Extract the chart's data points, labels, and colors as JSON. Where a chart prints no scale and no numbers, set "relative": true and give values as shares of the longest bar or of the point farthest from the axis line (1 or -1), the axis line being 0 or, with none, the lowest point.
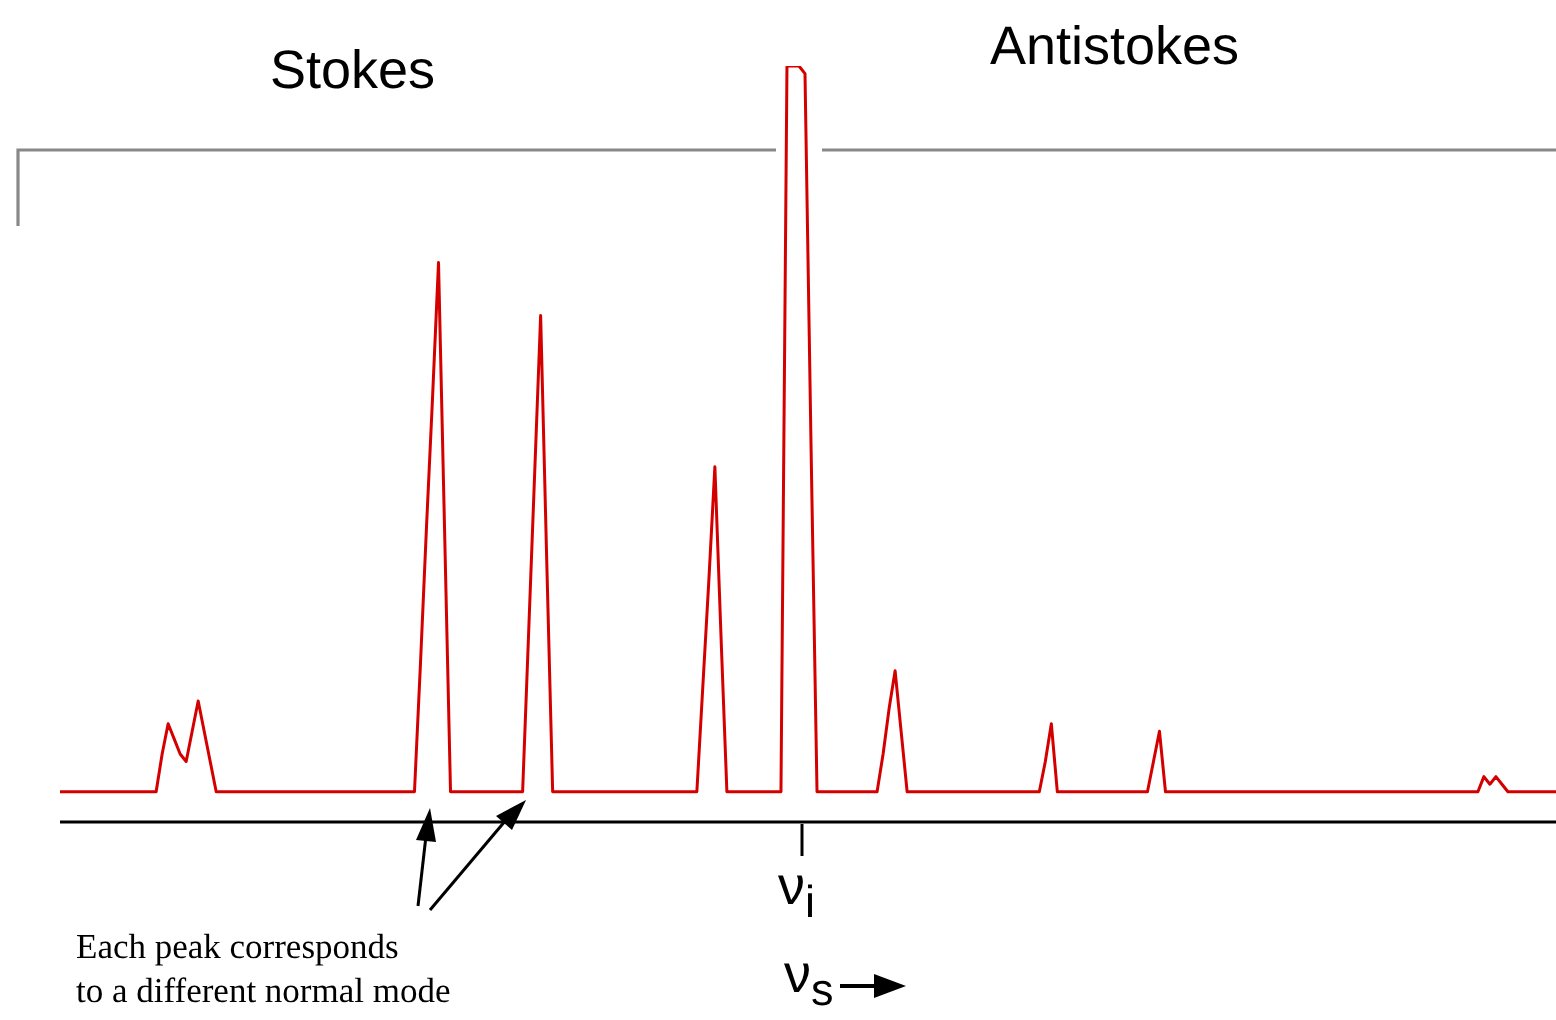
{
  "chart_data": {
    "type": "line",
    "relative": true,
    "color": "#d40000",
    "xlabel": "ν$_{s}$",
    "annotations": [
      "Stokes",
      "Antistokes",
      "ν$_{i}$",
      "Each peak corresponds\nto a different normal mode"
    ],
    "categories": [
      null,
      null,
      null,
      null,
      null,
      null,
      null,
      null,
      null,
      null,
      null,
      null,
      null,
      null,
      null,
      null,
      null,
      null,
      null,
      null,
      null,
      null,
      null,
      null,
      null,
      null,
      null,
      null,
      null,
      null,
      null,
      null,
      null,
      null,
      null,
      null,
      null,
      null,
      null,
      null,
      null,
      null,
      null,
      null,
      null,
      null,
      null,
      null,
      null,
      null,
      null,
      null,
      null,
      null,
      null,
      null,
      null,
      null,
      null,
      null,
      null,
      null,
      null,
      null,
      null,
      null,
      null,
      null,
      null,
      null,
      null,
      null,
      null,
      null,
      null,
      null,
      null,
      null,
      null,
      null,
      null,
      null,
      null,
      null,
      null,
      null,
      null,
      null,
      null,
      null,
      null,
      null,
      null,
      null,
      null,
      null,
      null,
      null,
      null,
      null,
      null,
      null,
      null,
      null,
      null,
      null,
      null,
      null,
      null,
      null,
      null,
      null,
      null,
      null,
      null,
      null,
      null,
      null,
      null,
      null,
      null,
      null,
      null,
      null,
      null,
      null,
      null,
      null,
      null,
      null,
      null,
      null,
      null,
      null,
      null,
      null,
      null,
      null,
      null,
      null,
      null,
      null,
      null,
      null,
      null,
      null,
      null,
      null,
      null,
      null,
      null,
      null,
      null,
      null,
      null,
      null,
      null,
      null,
      null,
      null,
      null,
      null,
      null,
      null,
      null,
      null,
      null,
      null,
      null,
      null,
      null,
      null,
      null,
      null,
      null,
      null,
      null,
      null,
      null,
      null,
      null,
      null,
      null,
      null,
      null,
      null,
      null,
      null,
      null,
      null,
      null,
      null,
      null,
      null,
      null,
      null,
      null,
      null,
      null,
      null,
      null,
      null,
      null,
      null,
      null,
      null,
      null,
      null,
      null,
      null,
      null,
      null,
      null,
      null,
      null,
      null,
      null,
      null,
      null,
      null,
      null,
      null,
      null,
      null,
      null,
      null,
      null,
      null,
      null,
      null,
      null,
      null,
      null,
      null,
      null,
      null,
      null,
      null,
      null,
      null,
      null,
      null,
      null,
      null,
      null,
      null,
      null,
      null,
      null,
      null
    ],
    "values": [
      0.04,
      0.04,
      0.04,
      0.04,
      0.04,
      0.04,
      0.04,
      0.04,
      0.04,
      0.04,
      0.04,
      0.04,
      0.04,
      0.04,
      0.04,
      0.04,
      0.04,
      0.09,
      0.13,
      0.11,
      0.09,
      0.08,
      0.12,
      0.16,
      0.12,
      0.08,
      0.04,
      0.04,
      0.04,
      0.04,
      0.04,
      0.04,
      0.04,
      0.04,
      0.04,
      0.04,
      0.04,
      0.04,
      0.04,
      0.04,
      0.04,
      0.04,
      0.04,
      0.04,
      0.04,
      0.04,
      0.04,
      0.04,
      0.04,
      0.04,
      0.04,
      0.04,
      0.04,
      0.04,
      0.04,
      0.04,
      0.04,
      0.04,
      0.04,
      0.04,
      0.21,
      0.39,
      0.56,
      0.74,
      0.39,
      0.04,
      0.04,
      0.04,
      0.04,
      0.04,
      0.04,
      0.04,
      0.04,
      0.04,
      0.04,
      0.04,
      0.04,
      0.04,
      0.25,
      0.46,
      0.67,
      0.35,
      0.04,
      0.04,
      0.04,
      0.04,
      0.04,
      0.04,
      0.04,
      0.04,
      0.04,
      0.04,
      0.04,
      0.04,
      0.04,
      0.04,
      0.04,
      0.04,
      0.04,
      0.04,
      0.04,
      0.04,
      0.04,
      0.04,
      0.04,
      0.04,
      0.04,
      0.18,
      0.32,
      0.47,
      0.25,
      0.04,
      0.04,
      0.04,
      0.04,
      0.04,
      0.04,
      0.04,
      0.04,
      0.04,
      0.04,
      1,
      1,
      1,
      0.99,
      0.5,
      0.04,
      0.04,
      0.04,
      0.04,
      0.04,
      0.04,
      0.04,
      0.04,
      0.04,
      0.04,
      0.04,
      0.09,
      0.15,
      0.2,
      0.12,
      0.04,
      0.04,
      0.04,
      0.04,
      0.04,
      0.04,
      0.04,
      0.04,
      0.04,
      0.04,
      0.04,
      0.04,
      0.04,
      0.04,
      0.04,
      0.04,
      0.04,
      0.04,
      0.04,
      0.04,
      0.04,
      0.04,
      0.04,
      0.08,
      0.13,
      0.04,
      0.04,
      0.04,
      0.04,
      0.04,
      0.04,
      0.04,
      0.04,
      0.04,
      0.04,
      0.04,
      0.04,
      0.04,
      0.04,
      0.04,
      0.04,
      0.08,
      0.12,
      0.04,
      0.04,
      0.04,
      0.04,
      0.04,
      0.04,
      0.04,
      0.04,
      0.04,
      0.04,
      0.04,
      0.04,
      0.04,
      0.04,
      0.04,
      0.04,
      0.04,
      0.04,
      0.04,
      0.04,
      0.04,
      0.04,
      0.04,
      0.04,
      0.04,
      0.04,
      0.04,
      0.04,
      0.04,
      0.04,
      0.04,
      0.04,
      0.04,
      0.04,
      0.04,
      0.04,
      0.04,
      0.04,
      0.04,
      0.04,
      0.04,
      0.04,
      0.04,
      0.04,
      0.04,
      0.04,
      0.04,
      0.04,
      0.04,
      0.04,
      0.04,
      0.04,
      0.04,
      0.06,
      0.05,
      0.06,
      0.05,
      0.04,
      0.04,
      0.04,
      0.04,
      0.04,
      0.04,
      0.04,
      0.04,
      0.04
    ]
  }
}
